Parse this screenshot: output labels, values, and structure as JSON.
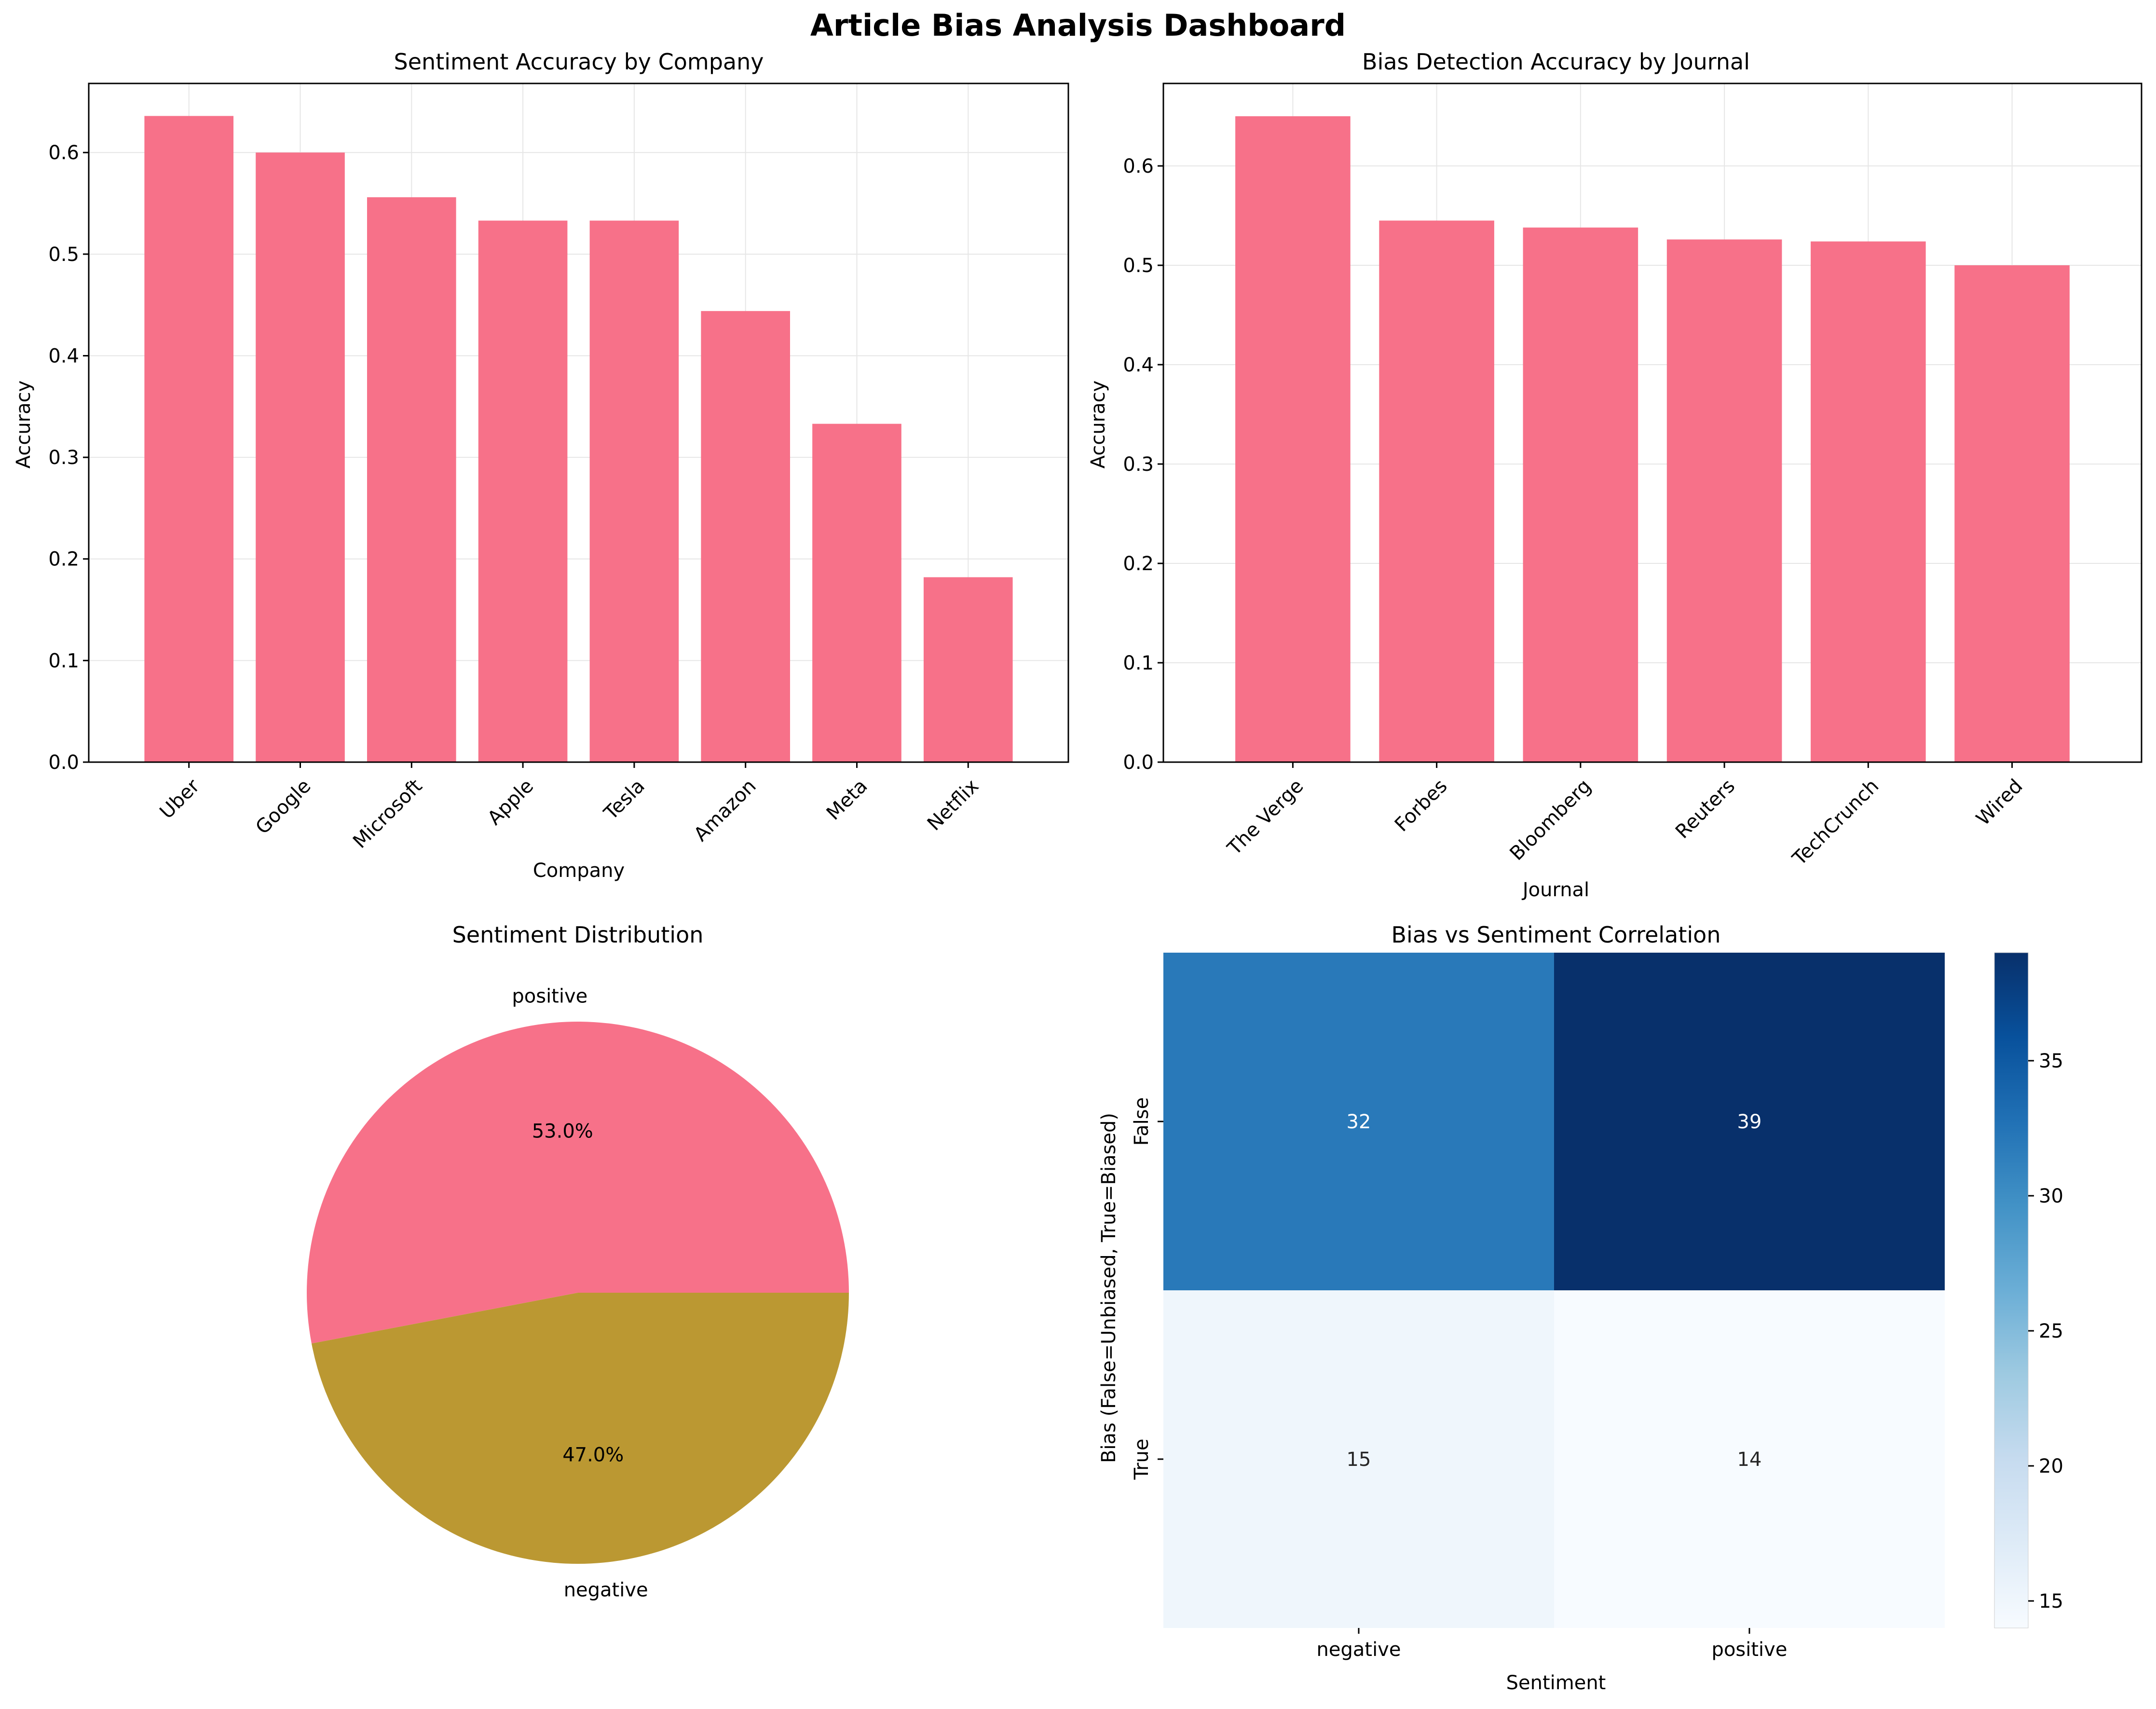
{
  "title": "Article Bias Analysis Dashboard",
  "colors": {
    "bar": "#f77189",
    "pie_positive": "#f77189",
    "pie_negative": "#bb9832",
    "grid": "#e6e6e6",
    "axis": "#000000",
    "heatmap_text_dark": "#262626",
    "heatmap_text_light": "#ffffff",
    "colormap": "Blues"
  },
  "chart_data": [
    {
      "type": "bar",
      "title": "Sentiment Accuracy by Company",
      "xlabel": "Company",
      "ylabel": "Accuracy",
      "categories": [
        "Uber",
        "Google",
        "Microsoft",
        "Apple",
        "Tesla",
        "Amazon",
        "Meta",
        "Netflix"
      ],
      "values": [
        0.636,
        0.6,
        0.556,
        0.533,
        0.533,
        0.444,
        0.333,
        0.182
      ],
      "ylim": [
        0,
        0.668
      ],
      "yticks": [
        "0.0",
        "0.1",
        "0.2",
        "0.3",
        "0.4",
        "0.5",
        "0.6"
      ],
      "grid": true
    },
    {
      "type": "bar",
      "title": "Bias Detection Accuracy by Journal",
      "xlabel": "Journal",
      "ylabel": "Accuracy",
      "categories": [
        "The Verge",
        "Forbes",
        "Bloomberg",
        "Reuters",
        "TechCrunch",
        "Wired"
      ],
      "values": [
        0.65,
        0.545,
        0.538,
        0.526,
        0.524,
        0.5
      ],
      "ylim": [
        0,
        0.683
      ],
      "yticks": [
        "0.0",
        "0.1",
        "0.2",
        "0.3",
        "0.4",
        "0.5",
        "0.6"
      ],
      "grid": true
    },
    {
      "type": "pie",
      "title": "Sentiment Distribution",
      "labels": [
        "positive",
        "negative"
      ],
      "values": [
        53.0,
        47.0
      ],
      "autopct": [
        "53.0%",
        "47.0%"
      ]
    },
    {
      "type": "heatmap",
      "title": "Bias vs Sentiment Correlation",
      "xlabel": "Sentiment",
      "ylabel": "Bias (False=Unbiased, True=Biased)",
      "x_categories": [
        "negative",
        "positive"
      ],
      "y_categories": [
        "False",
        "True"
      ],
      "values": [
        [
          32,
          39
        ],
        [
          15,
          14
        ]
      ],
      "colorbar_range": [
        14,
        39
      ],
      "colorbar_ticks": [
        "15",
        "20",
        "25",
        "30",
        "35"
      ]
    }
  ]
}
